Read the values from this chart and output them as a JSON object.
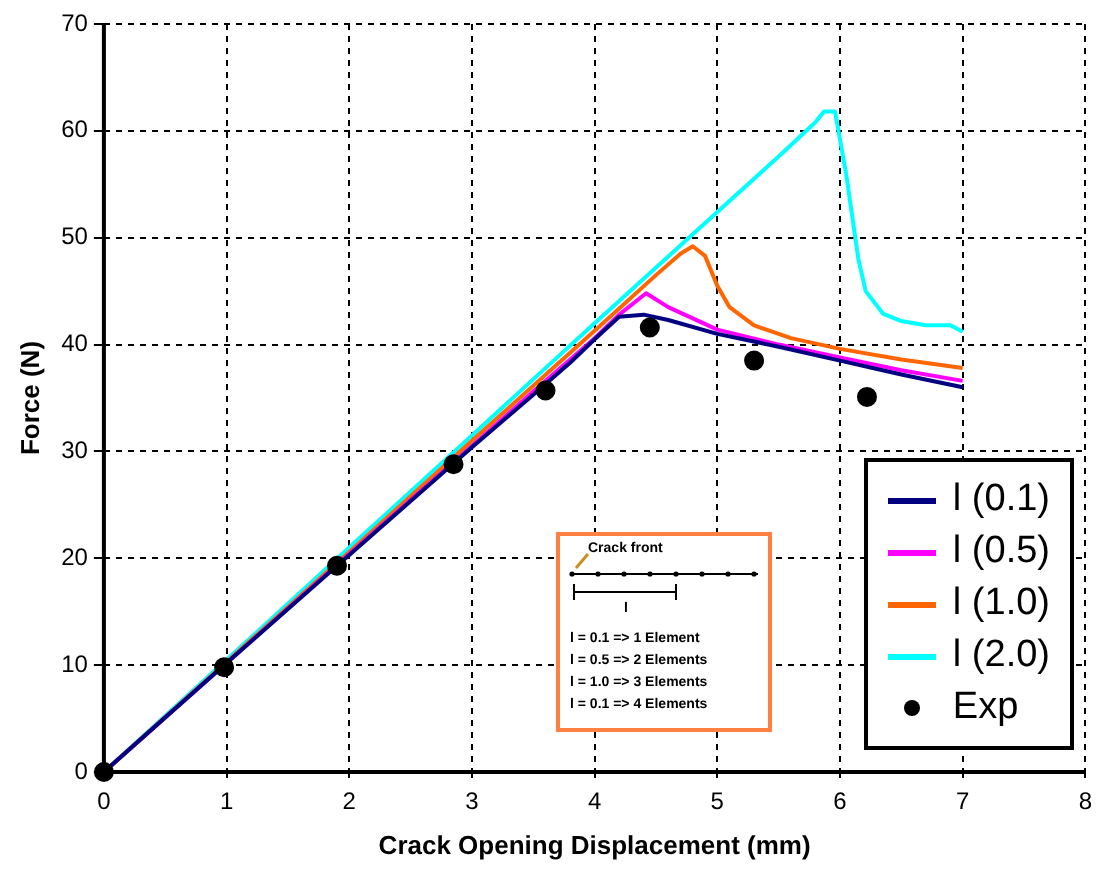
{
  "chart_data": {
    "type": "line",
    "xlabel": "Crack Opening Displacement (mm)",
    "ylabel": "Force (N)",
    "xlim": [
      0,
      8
    ],
    "xticks": [
      0,
      1,
      2,
      3,
      4,
      5,
      6,
      7,
      8
    ],
    "ylim": [
      0,
      70
    ],
    "yticks": [
      0,
      10,
      20,
      30,
      40,
      50,
      60,
      70
    ],
    "grid": true,
    "legend": "bottom right",
    "marker": "none",
    "line_style": "solid",
    "annotations": [
      "Crack front",
      "l",
      "l = 0.1 => 1 Element",
      "l = 0.5 => 2 Elements",
      "l = 1.0 => 3 Elements",
      "l = 0.1 => 4 Elements"
    ],
    "series": [
      {
        "name": "l (0.1)",
        "color": "#000080",
        "x": [
          0,
          1,
          2,
          3,
          3.5,
          3.8,
          4.0,
          4.2,
          4.4,
          4.6,
          5,
          5.5,
          6,
          6.5,
          7
        ],
        "values": [
          0,
          10.2,
          20.3,
          30.4,
          35.3,
          38.3,
          40.5,
          42.6,
          42.8,
          42.3,
          41,
          39.8,
          38.5,
          37.2,
          36.0
        ]
      },
      {
        "name": "l (0.5)",
        "color": "#ff00ff",
        "x": [
          0,
          1,
          2,
          3,
          3.5,
          4,
          4.2,
          4.42,
          4.6,
          5,
          5.5,
          6,
          6.5,
          7
        ],
        "values": [
          0,
          10.2,
          20.4,
          30.5,
          35.6,
          40.6,
          42.8,
          44.8,
          43.5,
          41.4,
          40,
          38.8,
          37.6,
          36.6
        ]
      },
      {
        "name": "l (1.0)",
        "color": "#ff6600",
        "x": [
          0,
          1,
          2,
          3,
          4,
          4.5,
          4.7,
          4.8,
          4.9,
          5.0,
          5.1,
          5.3,
          5.6,
          6,
          6.5,
          7
        ],
        "values": [
          0,
          10.3,
          20.6,
          31,
          41.3,
          46.5,
          48.5,
          49.2,
          48.3,
          45.5,
          43.5,
          41.8,
          40.6,
          39.6,
          38.6,
          37.8
        ]
      },
      {
        "name": "l (2.0)",
        "color": "#00ffff",
        "x": [
          0,
          1,
          2,
          3,
          4,
          5,
          5.5,
          5.8,
          5.87,
          5.96,
          6.05,
          6.15,
          6.21,
          6.35,
          6.5,
          6.7,
          6.9,
          7
        ],
        "values": [
          0,
          10.5,
          21,
          31.5,
          42,
          52.4,
          57.6,
          60.8,
          61.8,
          61.8,
          56,
          48,
          45,
          42.9,
          42.2,
          41.8,
          41.8,
          41.2
        ]
      },
      {
        "name": "Exp",
        "type": "scatter",
        "marker": "circle",
        "color": "#000000",
        "x": [
          0,
          0.98,
          1.9,
          2.85,
          3.6,
          4.45,
          5.3,
          6.22
        ],
        "values": [
          0,
          9.8,
          19.3,
          28.8,
          35.7,
          41.6,
          38.5,
          35.1
        ]
      }
    ]
  }
}
